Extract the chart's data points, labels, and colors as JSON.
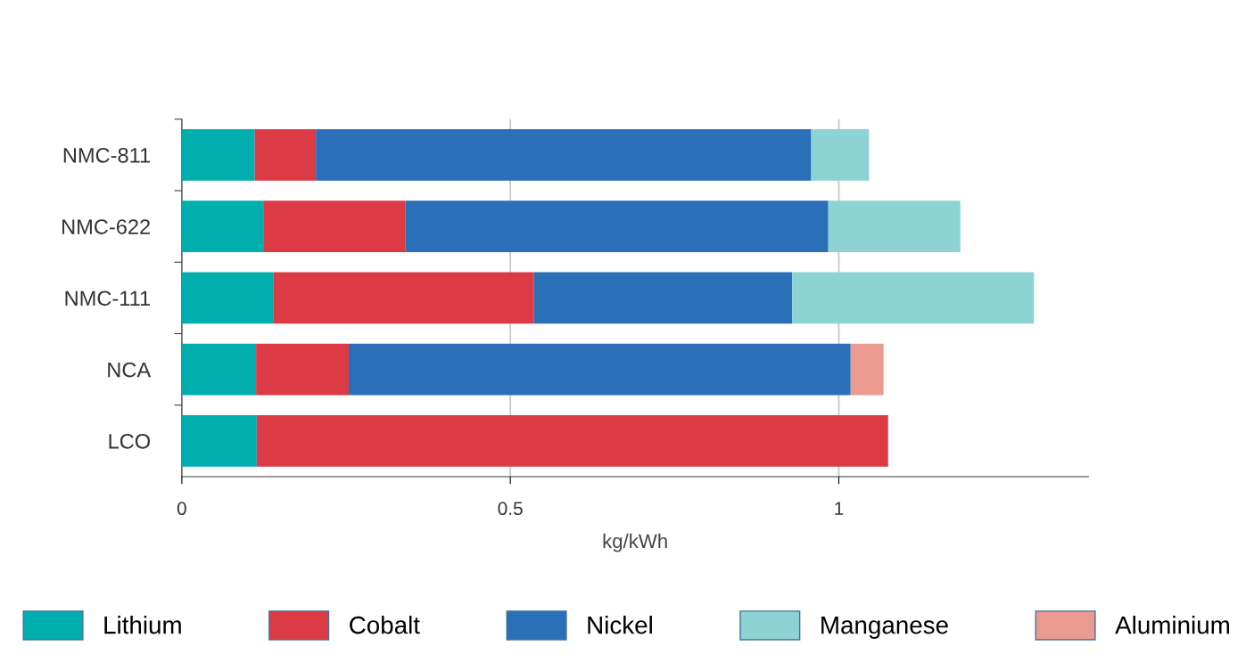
{
  "chart_data": {
    "type": "bar",
    "orientation": "horizontal",
    "stacked": true,
    "xlabel": "kg/kWh",
    "categories": [
      "NMC-811",
      "NMC-622",
      "NMC-111",
      "NCA",
      "LCO"
    ],
    "series": [
      {
        "name": "Lithium",
        "color": "#00aeae",
        "values": [
          0.111,
          0.125,
          0.139,
          0.113,
          0.114
        ]
      },
      {
        "name": "Cobalt",
        "color": "#dc3a45",
        "values": [
          0.093,
          0.215,
          0.397,
          0.141,
          0.961
        ]
      },
      {
        "name": "Nickel",
        "color": "#2a6fb8",
        "values": [
          0.754,
          0.644,
          0.393,
          0.764,
          null
        ]
      },
      {
        "name": "Manganese",
        "color": "#8dd3d3",
        "values": [
          0.088,
          0.201,
          0.368,
          null,
          null
        ]
      },
      {
        "name": "Aluminium",
        "color": "#eb9a8f",
        "values": [
          null,
          null,
          null,
          0.05,
          null
        ]
      }
    ],
    "xlim": [
      0,
      1.38
    ],
    "xticks": [
      0,
      0.5,
      1
    ],
    "grid": "x",
    "legend": "bottom"
  }
}
